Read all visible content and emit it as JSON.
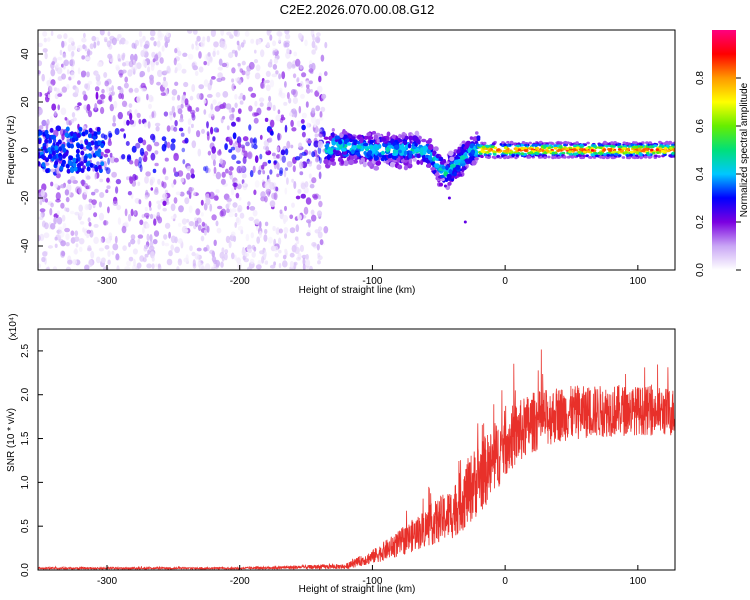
{
  "title": "C2E2.2026.070.00.08.G12",
  "chart_data": [
    {
      "type": "heatmap",
      "xlabel": "Height of straight line (km)",
      "ylabel": "Frequency (Hz)",
      "xlim": [
        -352,
        128
      ],
      "ylim": [
        -50,
        50
      ],
      "xticks": [
        -300,
        -200,
        -100,
        0,
        100
      ],
      "yticks": [
        40,
        20,
        0,
        -20,
        -40
      ],
      "ytick_labels": [
        "40",
        "20",
        "0",
        "-20",
        "-40"
      ],
      "colorbar": {
        "label": "Normalized spectral amplitude",
        "range": [
          0.0,
          1.0
        ],
        "ticks": [
          0.0,
          0.2,
          0.4,
          0.6,
          0.8
        ],
        "tick_labels": [
          "0.0",
          "0.2",
          "0.4",
          "0.6",
          "0.8"
        ],
        "colors": [
          "#ffffff",
          "#c9a6f5",
          "#7b00e0",
          "#0000ff",
          "#00c8ff",
          "#00e07a",
          "#66ee00",
          "#ffff00",
          "#ff9900",
          "#ff0000",
          "#ff007f"
        ]
      },
      "regions": [
        {
          "x_range": [
            -352,
            -135
          ],
          "y_range": [
            -50,
            50
          ],
          "level": 0.15,
          "pattern": "scattered noise"
        },
        {
          "x_range": [
            -135,
            -20
          ],
          "center_freq": [
            [
              -130,
              2
            ],
            [
              -100,
              0
            ],
            [
              -60,
              0
            ],
            [
              -45,
              -10
            ],
            [
              -25,
              0
            ]
          ],
          "peak_level": 0.5
        },
        {
          "x_range": [
            -20,
            128
          ],
          "center_freq": 0,
          "bandwidth": 3,
          "peak_level": 0.9
        }
      ]
    },
    {
      "type": "line",
      "xlabel": "Height of straight line (km)",
      "ylabel": "SNR (10 * v/v)",
      "scale_label": "(x10⁴)",
      "xlim": [
        -352,
        128
      ],
      "ylim": [
        0,
        2.75
      ],
      "xticks": [
        -300,
        -200,
        -100,
        0,
        100
      ],
      "yticks": [
        0.0,
        0.5,
        1.0,
        1.5,
        2.0,
        2.5
      ],
      "ytick_labels": [
        "0.0",
        "0.5",
        "1.0",
        "1.5",
        "2.0",
        "2.5"
      ],
      "color": "#e8302a",
      "envelope": {
        "x": [
          -352,
          -300,
          -200,
          -120,
          -100,
          -80,
          -60,
          -40,
          -30,
          -20,
          -10,
          0,
          20,
          40,
          60,
          80,
          100,
          128
        ],
        "y": [
          0.02,
          0.02,
          0.02,
          0.04,
          0.15,
          0.3,
          0.48,
          0.65,
          0.85,
          1.05,
          1.2,
          1.45,
          1.68,
          1.78,
          1.8,
          1.82,
          1.82,
          1.8
        ],
        "noise": [
          0.01,
          0.01,
          0.01,
          0.03,
          0.08,
          0.15,
          0.22,
          0.3,
          0.38,
          0.42,
          0.4,
          0.38,
          0.35,
          0.32,
          0.3,
          0.3,
          0.28,
          0.28
        ]
      }
    }
  ]
}
